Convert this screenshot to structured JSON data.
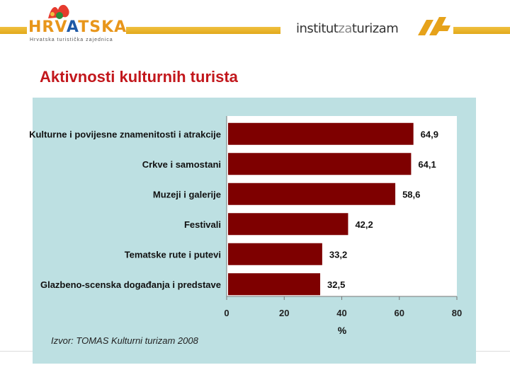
{
  "header": {
    "logo_left": {
      "letters_a": "HRV",
      "letters_b": "A",
      "letters_c": "TSKA",
      "tagline": "Hrvatska turistička zajednica"
    },
    "logo_right": {
      "part_a": "institut",
      "part_b": "za",
      "part_c": "turizam"
    },
    "brand_colors": {
      "band": "#e8b125",
      "title": "#c2171c",
      "panel": "#bde0e2",
      "bar": "#7e0000"
    }
  },
  "slide": {
    "title": "Aktivnosti kulturnih turista",
    "source": "Izvor: TOMAS Kulturni turizam 2008"
  },
  "chart_data": {
    "type": "bar",
    "orientation": "horizontal",
    "categories": [
      "Kulturne i povijesne znamenitosti i atrakcije",
      "Crkve i samostani",
      "Muzeji i galerije",
      "Festivali",
      "Tematske rute i putevi",
      "Glazbeno-scenska događanja i predstave"
    ],
    "values": [
      64.9,
      64.1,
      58.6,
      42.2,
      33.2,
      32.5
    ],
    "value_labels": [
      "64,9",
      "64,1",
      "58,6",
      "42,2",
      "33,2",
      "32,5"
    ],
    "xlabel": "%",
    "ylabel": "",
    "xlim": [
      0,
      80
    ],
    "xticks": [
      0,
      20,
      40,
      60,
      80
    ],
    "bar_color": "#7e0000",
    "grid": false
  }
}
